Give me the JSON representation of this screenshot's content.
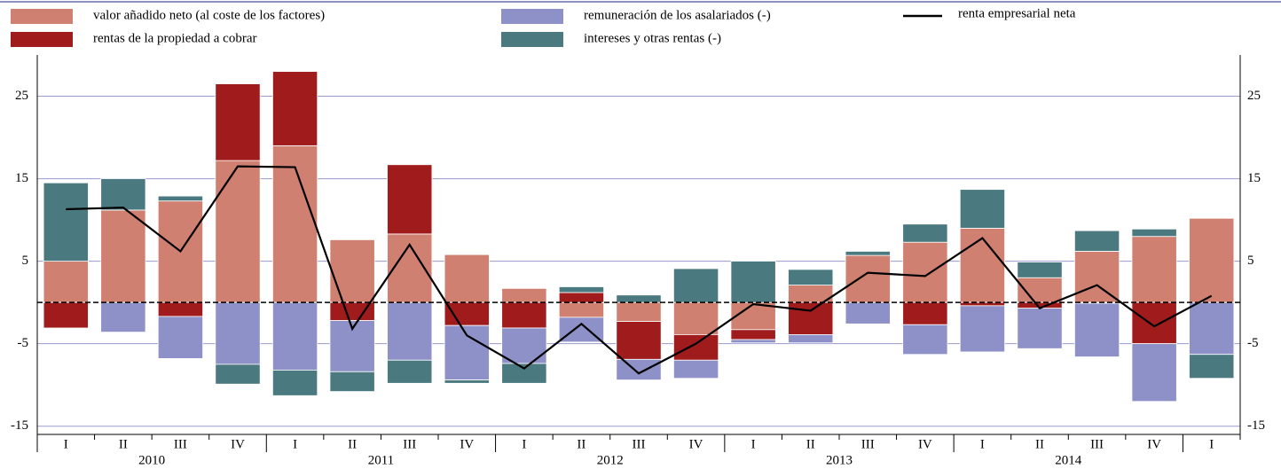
{
  "chart_data": {
    "type": "bar",
    "categories": [
      "I",
      "II",
      "III",
      "IV",
      "I",
      "II",
      "III",
      "IV",
      "I",
      "II",
      "III",
      "IV",
      "I",
      "II",
      "III",
      "IV",
      "I",
      "II",
      "III",
      "IV",
      "I"
    ],
    "years": [
      "2010",
      "2011",
      "2012",
      "2013",
      "2014"
    ],
    "series": [
      {
        "name": "valor añadido neto (al coste de los factores)",
        "color": "#d08070",
        "values": [
          5.0,
          11.2,
          12.3,
          17.2,
          19.0,
          7.6,
          8.3,
          5.8,
          1.7,
          -1.8,
          -2.3,
          -3.9,
          -3.3,
          2.1,
          5.7,
          7.3,
          9.0,
          3.0,
          6.2,
          8.0,
          10.2
        ]
      },
      {
        "name": "rentas de la propiedad a cobrar",
        "color": "#a01c1c",
        "values": [
          -3.1,
          0,
          -1.7,
          9.3,
          9.0,
          -2.2,
          8.4,
          -2.8,
          -3.1,
          1.2,
          -4.6,
          -3.1,
          -1.2,
          -3.9,
          0,
          -2.7,
          -0.4,
          -0.7,
          -0.1,
          -5.0,
          0
        ]
      },
      {
        "name": "remuneración de los asalariados (-)",
        "color": "#8e90c8",
        "values": [
          0,
          -3.6,
          -5.1,
          -7.5,
          -8.2,
          -6.2,
          -7.0,
          -6.6,
          -4.3,
          -3.0,
          -2.5,
          -2.2,
          -0.4,
          -1.0,
          -2.6,
          -3.6,
          -5.6,
          -4.9,
          -6.5,
          -7.0,
          -6.3
        ]
      },
      {
        "name": "intereses y otras rentas (-)",
        "color": "#4a7a80",
        "values": [
          9.5,
          3.8,
          0.6,
          -2.4,
          -3.1,
          -2.4,
          -2.8,
          -0.4,
          -2.4,
          0.7,
          0.9,
          4.1,
          5.0,
          1.9,
          0.5,
          2.2,
          4.7,
          1.9,
          2.5,
          0.9,
          -2.9
        ]
      }
    ],
    "line": {
      "name": "renta empresarial neta",
      "color": "#000000",
      "values": [
        11.3,
        11.5,
        6.2,
        16.5,
        16.4,
        -3.2,
        7.0,
        -4.0,
        -8.0,
        -2.6,
        -8.6,
        -5.0,
        -0.2,
        -1.0,
        3.6,
        3.2,
        7.8,
        -0.7,
        2.1,
        -2.9,
        0.8
      ]
    },
    "ylim": [
      -16,
      30
    ],
    "yticks": [
      -15,
      -5,
      5,
      15,
      25
    ],
    "grid": true
  }
}
